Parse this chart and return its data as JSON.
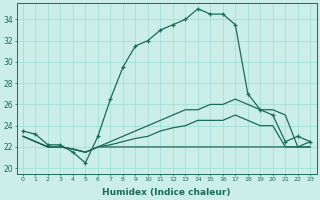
{
  "xlabel": "Humidex (Indice chaleur)",
  "ylabel": "",
  "bg_color": "#cceee8",
  "grid_color": "#99ddd5",
  "line_color": "#1a6b5a",
  "xlim": [
    -0.5,
    23.5
  ],
  "ylim": [
    19.5,
    35.5
  ],
  "yticks": [
    20,
    22,
    24,
    26,
    28,
    30,
    32,
    34
  ],
  "xticks": [
    0,
    1,
    2,
    3,
    4,
    5,
    6,
    7,
    8,
    9,
    10,
    11,
    12,
    13,
    14,
    15,
    16,
    17,
    18,
    19,
    20,
    21,
    22,
    23
  ],
  "series1_x": [
    0,
    1,
    2,
    3,
    4,
    5,
    6,
    7,
    8,
    9,
    10,
    11,
    12,
    13,
    14,
    15,
    16,
    17,
    18,
    19,
    20,
    21,
    22,
    23
  ],
  "series1_y": [
    23.5,
    23.2,
    22.2,
    22.2,
    21.5,
    20.5,
    23.0,
    26.5,
    29.5,
    31.5,
    32.0,
    33.0,
    33.5,
    34.0,
    35.0,
    34.5,
    34.5,
    33.5,
    27.0,
    25.5,
    25.0,
    22.5,
    23.0,
    22.5
  ],
  "series2_x": [
    0,
    1,
    2,
    3,
    4,
    5,
    6,
    7,
    8,
    9,
    10,
    11,
    12,
    13,
    14,
    15,
    16,
    17,
    18,
    19,
    20,
    21,
    22,
    23
  ],
  "series2_y": [
    23.0,
    22.5,
    22.0,
    22.0,
    21.8,
    21.5,
    22.0,
    22.5,
    23.0,
    23.5,
    24.0,
    24.5,
    25.0,
    25.5,
    25.5,
    26.0,
    26.0,
    26.5,
    26.0,
    25.5,
    25.5,
    25.0,
    22.0,
    22.5
  ],
  "series3_x": [
    0,
    1,
    2,
    3,
    4,
    5,
    6,
    7,
    8,
    9,
    10,
    11,
    12,
    13,
    14,
    15,
    16,
    17,
    18,
    19,
    20,
    21,
    22,
    23
  ],
  "series3_y": [
    23.0,
    22.5,
    22.0,
    22.0,
    21.8,
    21.5,
    22.0,
    22.2,
    22.5,
    22.8,
    23.0,
    23.5,
    23.8,
    24.0,
    24.5,
    24.5,
    24.5,
    25.0,
    24.5,
    24.0,
    24.0,
    22.0,
    22.0,
    22.0
  ],
  "series4_x": [
    0,
    1,
    2,
    3,
    4,
    5,
    6,
    7,
    8,
    9,
    10,
    11,
    12,
    13,
    14,
    15,
    16,
    17,
    18,
    19,
    20,
    21,
    22,
    23
  ],
  "series4_y": [
    23.0,
    22.5,
    22.0,
    22.0,
    21.8,
    21.5,
    22.0,
    22.0,
    22.0,
    22.0,
    22.0,
    22.0,
    22.0,
    22.0,
    22.0,
    22.0,
    22.0,
    22.0,
    22.0,
    22.0,
    22.0,
    22.0,
    22.0,
    22.0
  ]
}
